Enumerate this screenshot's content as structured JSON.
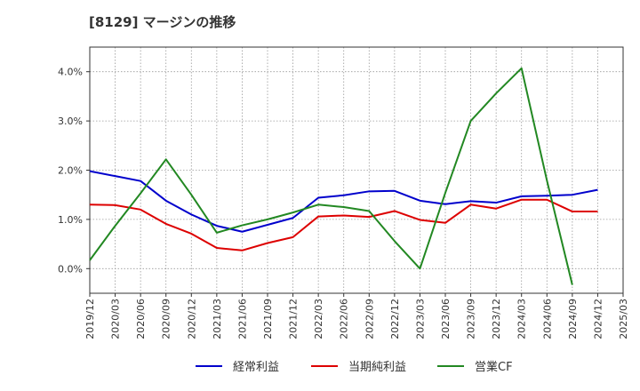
{
  "chart_data": {
    "type": "line",
    "title": "[8129]  マージンの推移",
    "xlabel": "",
    "ylabel": "",
    "ylim": [
      -0.5,
      4.5
    ],
    "yticks": [
      0.0,
      1.0,
      2.0,
      3.0,
      4.0
    ],
    "ytick_labels": [
      "0.0%",
      "1.0%",
      "2.0%",
      "3.0%",
      "4.0%"
    ],
    "x": [
      "2019/12",
      "2020/03",
      "2020/06",
      "2020/09",
      "2020/12",
      "2021/03",
      "2021/06",
      "2021/09",
      "2021/12",
      "2022/03",
      "2022/06",
      "2022/09",
      "2022/12",
      "2023/03",
      "2023/06",
      "2023/09",
      "2023/12",
      "2024/03",
      "2024/06",
      "2024/09",
      "2024/12",
      "2025/03"
    ],
    "grid": true,
    "legend_position": "bottom",
    "series": [
      {
        "name": "経常利益",
        "color": "#0000cc",
        "values": [
          1.98,
          1.88,
          1.78,
          1.38,
          1.1,
          0.87,
          0.75,
          0.89,
          1.03,
          1.44,
          1.49,
          1.57,
          1.58,
          1.38,
          1.31,
          1.37,
          1.34,
          1.47,
          1.48,
          1.5,
          1.6,
          null
        ]
      },
      {
        "name": "当期純利益",
        "color": "#dd0000",
        "values": [
          1.3,
          1.29,
          1.2,
          0.91,
          0.71,
          0.42,
          0.37,
          0.52,
          0.64,
          1.06,
          1.08,
          1.05,
          1.17,
          0.99,
          0.93,
          1.3,
          1.22,
          1.4,
          1.4,
          1.16,
          1.16,
          null
        ]
      },
      {
        "name": "営業CF",
        "color": "#228822",
        "values": [
          0.17,
          0.87,
          1.53,
          2.22,
          1.5,
          0.73,
          0.88,
          1.0,
          1.14,
          1.3,
          1.25,
          1.17,
          0.56,
          0.0,
          1.54,
          3.0,
          3.56,
          4.07,
          1.79,
          -0.33,
          null,
          null
        ]
      }
    ]
  }
}
